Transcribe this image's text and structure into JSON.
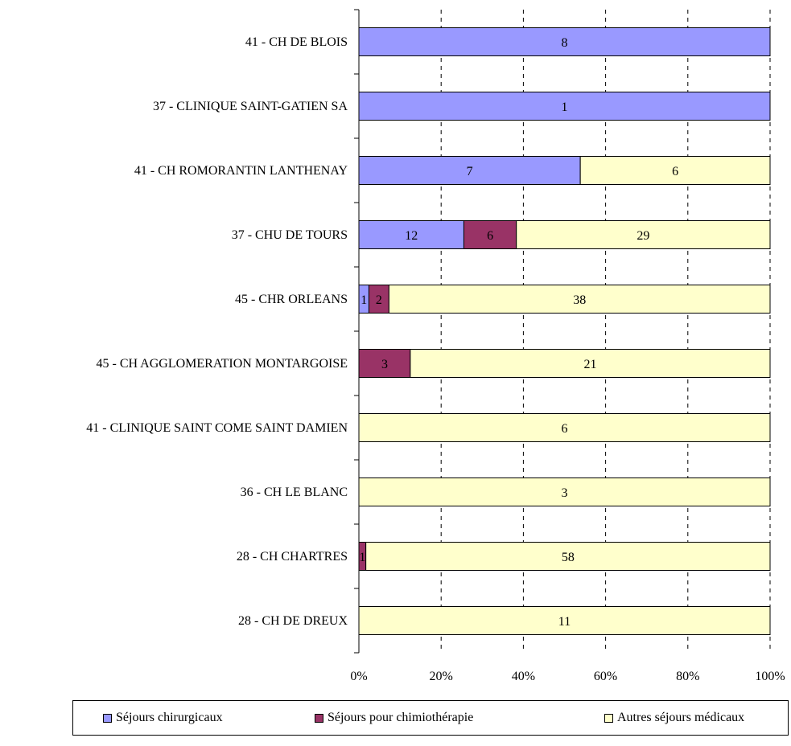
{
  "chart_data": {
    "type": "bar",
    "orientation": "horizontal",
    "stacked": "percent",
    "categories": [
      "41 - CH DE BLOIS",
      "37 - CLINIQUE SAINT-GATIEN SA",
      "41 - CH ROMORANTIN LANTHENAY",
      "37 - CHU  DE TOURS",
      "45 - CHR  ORLEANS",
      "45 - CH AGGLOMERATION MONTARGOISE",
      "41 - CLINIQUE SAINT COME SAINT DAMIEN",
      "36 - CH  LE BLANC",
      "28 - CH CHARTRES",
      "28 - CH DE DREUX"
    ],
    "series": [
      {
        "name": "Séjours chirurgicaux",
        "color": "#9999ff",
        "values": [
          8,
          1,
          7,
          12,
          1,
          0,
          0,
          0,
          0,
          0
        ]
      },
      {
        "name": "Séjours pour chimiothérapie",
        "color": "#993366",
        "values": [
          0,
          0,
          0,
          6,
          2,
          3,
          0,
          0,
          1,
          0
        ]
      },
      {
        "name": "Autres séjours médicaux",
        "color": "#ffffcc",
        "values": [
          0,
          0,
          6,
          29,
          38,
          21,
          6,
          3,
          58,
          11
        ]
      }
    ],
    "xticks": [
      "0%",
      "20%",
      "40%",
      "60%",
      "80%",
      "100%"
    ],
    "xlim": [
      0,
      100
    ],
    "grid": "vertical dashed",
    "legend_position": "bottom"
  }
}
